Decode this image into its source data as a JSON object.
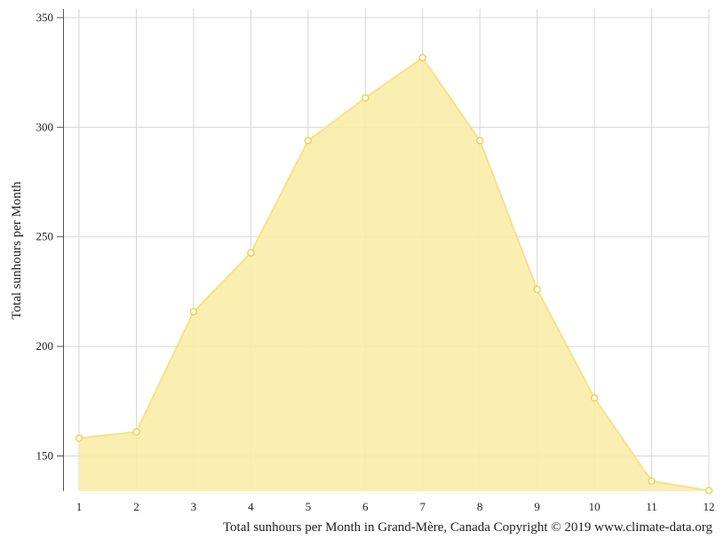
{
  "chart_data": {
    "type": "area",
    "title": "Total sunhours per Month in Grand-Mère, Canada Copyright © 2019 www.climate-data.org",
    "xlabel": "",
    "ylabel": "Total sunhours per Month",
    "categories": [
      "1",
      "2",
      "3",
      "4",
      "5",
      "6",
      "7",
      "8",
      "9",
      "10",
      "11",
      "12"
    ],
    "values": [
      158.1,
      161.0,
      215.8,
      242.7,
      293.9,
      313.4,
      331.7,
      293.9,
      226.0,
      176.5,
      138.6,
      134.2
    ],
    "yticks": [
      150,
      200,
      250,
      300,
      350
    ],
    "ylim": [
      134,
      354
    ],
    "grid": true,
    "colors": {
      "fill": "#f9eca8",
      "line": "#f7e28a",
      "marker": "#f2d24a",
      "grid": "#d6d6d6"
    }
  }
}
